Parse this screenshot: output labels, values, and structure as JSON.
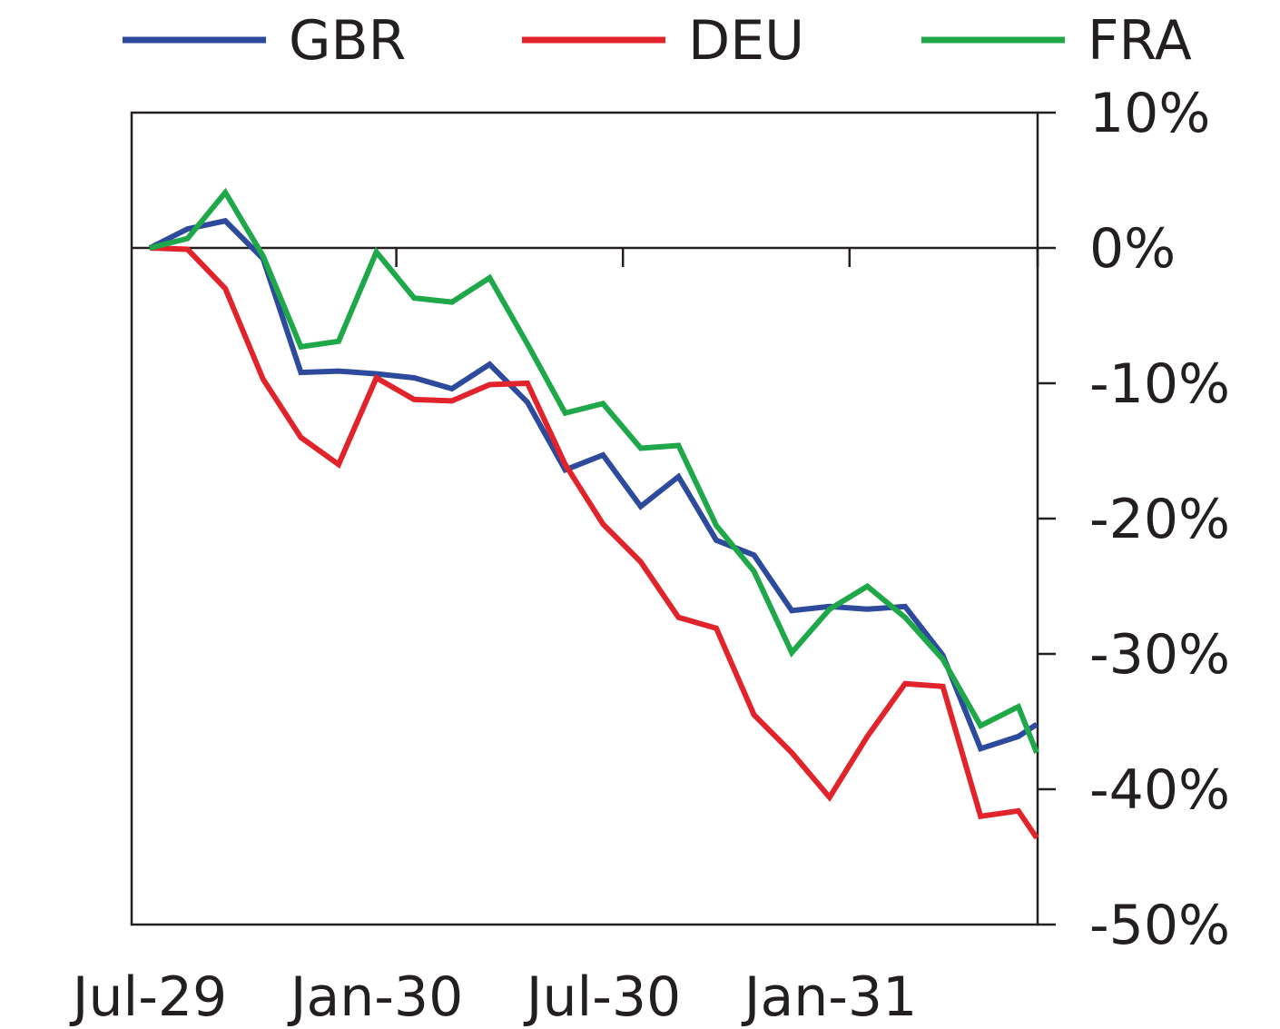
{
  "chart_data": {
    "type": "line",
    "title": "",
    "xlabel": "",
    "ylabel": "",
    "x": [
      "Jul-29",
      "Aug-29",
      "Sep-29",
      "Oct-29",
      "Nov-29",
      "Dec-29",
      "Jan-30",
      "Feb-30",
      "Mar-30",
      "Apr-30",
      "May-30",
      "Jun-30",
      "Jul-30",
      "Aug-30",
      "Sep-30",
      "Oct-30",
      "Nov-30",
      "Dec-30",
      "Jan-31",
      "Feb-31",
      "Mar-31",
      "Apr-31",
      "May-31",
      "Jun-31",
      "Jul-31"
    ],
    "x_tick_labels": [
      "Jul-29",
      "Jan-30",
      "Jul-30",
      "Jan-31"
    ],
    "ylim": [
      -50,
      10
    ],
    "y_ticks": [
      10,
      0,
      -10,
      -20,
      -30,
      -40,
      -50
    ],
    "y_tick_labels": [
      "10%",
      "0%",
      "-10%",
      "-20%",
      "-30%",
      "-40%",
      "-50%"
    ],
    "y_axis_position": "right",
    "legend_position": "top",
    "grid": false,
    "series": [
      {
        "name": "GBR",
        "color": "#2e4a9c",
        "values": [
          0,
          1.4,
          2.0,
          -0.8,
          -9.2,
          -9.1,
          -9.3,
          -9.6,
          -10.4,
          -8.6,
          -11.4,
          -16.4,
          -15.3,
          -19.1,
          -16.9,
          -21.6,
          -22.7,
          -26.8,
          -26.5,
          -26.7,
          -26.5,
          -30.1,
          -37.0,
          -36.1,
          -35.2
        ]
      },
      {
        "name": "DEU",
        "color": "#e1242b",
        "values": [
          0,
          -0.1,
          -3.0,
          -9.7,
          -14.0,
          -16.0,
          -9.6,
          -11.2,
          -11.3,
          -10.1,
          -10.0,
          -16.0,
          -20.4,
          -23.2,
          -27.3,
          -28.1,
          -34.5,
          -37.3,
          -40.6,
          -36.1,
          -32.2,
          -32.4,
          -42.0,
          -41.6,
          -43.6
        ]
      },
      {
        "name": "FRA",
        "color": "#1fa84a",
        "values": [
          0,
          0.7,
          4.1,
          -0.6,
          -7.3,
          -6.9,
          -0.3,
          -3.7,
          -4.0,
          -2.2,
          -7.1,
          -12.2,
          -11.5,
          -14.8,
          -14.6,
          -20.5,
          -23.9,
          -29.9,
          -26.7,
          -25.0,
          -27.3,
          -30.4,
          -35.3,
          -33.9,
          -37.3
        ]
      }
    ]
  }
}
